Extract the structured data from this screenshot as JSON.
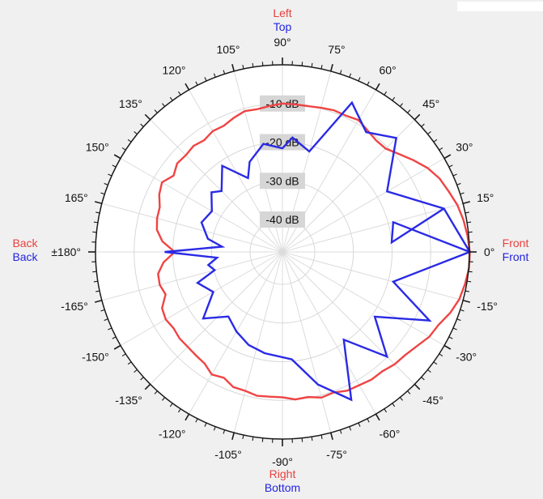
{
  "chart_data": {
    "type": "polar-line",
    "radial_axis": {
      "unit": "dB",
      "tick_labels": [
        "-10 dB",
        "-20 dB",
        "-30 dB",
        "-40 dB"
      ],
      "tick_values": [
        -10,
        -20,
        -30,
        -40
      ],
      "range": [
        -40,
        0
      ]
    },
    "angle_ticks": [
      {
        "angle": 90,
        "label": "90°"
      },
      {
        "angle": 75,
        "label": "75°"
      },
      {
        "angle": 60,
        "label": "60°"
      },
      {
        "angle": 45,
        "label": "45°"
      },
      {
        "angle": 30,
        "label": "30°"
      },
      {
        "angle": 15,
        "label": "15°"
      },
      {
        "angle": 0,
        "label": "0°"
      },
      {
        "angle": -15,
        "label": "-15°"
      },
      {
        "angle": -30,
        "label": "-30°"
      },
      {
        "angle": -45,
        "label": "-45°"
      },
      {
        "angle": -60,
        "label": "-60°"
      },
      {
        "angle": -75,
        "label": "-75°"
      },
      {
        "angle": -90,
        "label": "-90°"
      },
      {
        "angle": -105,
        "label": "-105°"
      },
      {
        "angle": -120,
        "label": "-120°"
      },
      {
        "angle": -135,
        "label": "-135°"
      },
      {
        "angle": -150,
        "label": "-150°"
      },
      {
        "angle": -165,
        "label": "-165°"
      },
      {
        "angle": 180,
        "label": "±180°"
      },
      {
        "angle": 165,
        "label": "165°"
      },
      {
        "angle": 150,
        "label": "150°"
      },
      {
        "angle": 135,
        "label": "135°"
      },
      {
        "angle": 120,
        "label": "120°"
      },
      {
        "angle": 105,
        "label": "105°"
      }
    ],
    "direction_labels": {
      "top": [
        {
          "text": "Left",
          "color": "#e8413f"
        },
        {
          "text": "Top",
          "color": "#2323e0"
        }
      ],
      "bottom": [
        {
          "text": "Right",
          "color": "#e8413f"
        },
        {
          "text": "Bottom",
          "color": "#2323e0"
        }
      ],
      "right": [
        {
          "text": "Front",
          "color": "#e8413f"
        },
        {
          "text": "Front",
          "color": "#2323e0"
        }
      ],
      "left": [
        {
          "text": "Back",
          "color": "#e8413f"
        },
        {
          "text": "Back",
          "color": "#2323e0"
        }
      ]
    },
    "series": [
      {
        "color": "#ef4444",
        "points": [
          {
            "angle": 0,
            "value": 0.1
          },
          {
            "angle": 5,
            "value": -0.3
          },
          {
            "angle": 10,
            "value": -0.8
          },
          {
            "angle": 15,
            "value": -1.5
          },
          {
            "angle": 20,
            "value": -2.6
          },
          {
            "angle": 25,
            "value": -3.5
          },
          {
            "angle": 30,
            "value": -5.0
          },
          {
            "angle": 35,
            "value": -7.0
          },
          {
            "angle": 40,
            "value": -9.0
          },
          {
            "angle": 45,
            "value": -10.6
          },
          {
            "angle": 50,
            "value": -10.7
          },
          {
            "angle": 55,
            "value": -10.0
          },
          {
            "angle": 60,
            "value": -9.0
          },
          {
            "angle": 65,
            "value": -9.5
          },
          {
            "angle": 70,
            "value": -9.4
          },
          {
            "angle": 75,
            "value": -9.8
          },
          {
            "angle": 80,
            "value": -10.1
          },
          {
            "angle": 85,
            "value": -10.1
          },
          {
            "angle": 90,
            "value": -10.0
          },
          {
            "angle": 95,
            "value": -10.5
          },
          {
            "angle": 100,
            "value": -10.9
          },
          {
            "angle": 105,
            "value": -10.7
          },
          {
            "angle": 110,
            "value": -11.5
          },
          {
            "angle": 115,
            "value": -12.4
          },
          {
            "angle": 120,
            "value": -12.3
          },
          {
            "angle": 125,
            "value": -13.1
          },
          {
            "angle": 130,
            "value": -12.6
          },
          {
            "angle": 135,
            "value": -13.0
          },
          {
            "angle": 140,
            "value": -12.8
          },
          {
            "angle": 145,
            "value": -14.0
          },
          {
            "angle": 150,
            "value": -12.4
          },
          {
            "angle": 155,
            "value": -13.2
          },
          {
            "angle": 160,
            "value": -14.6
          },
          {
            "angle": 165,
            "value": -14.8
          },
          {
            "angle": 170,
            "value": -15.4
          },
          {
            "angle": 175,
            "value": -17.2
          },
          {
            "angle": 180,
            "value": -20.5
          },
          {
            "angle": -175,
            "value": -17.5
          },
          {
            "angle": -170,
            "value": -15.7
          },
          {
            "angle": -165,
            "value": -15.5
          },
          {
            "angle": -160,
            "value": -16.2
          },
          {
            "angle": -155,
            "value": -14.0
          },
          {
            "angle": -150,
            "value": -13.5
          },
          {
            "angle": -145,
            "value": -14.0
          },
          {
            "angle": -140,
            "value": -13.6
          },
          {
            "angle": -135,
            "value": -13.7
          },
          {
            "angle": -130,
            "value": -13.5
          },
          {
            "angle": -125,
            "value": -13.2
          },
          {
            "angle": -120,
            "value": -11.8
          },
          {
            "angle": -115,
            "value": -12.5
          },
          {
            "angle": -110,
            "value": -11.2
          },
          {
            "angle": -105,
            "value": -11.2
          },
          {
            "angle": -100,
            "value": -10.6
          },
          {
            "angle": -95,
            "value": -10.8
          },
          {
            "angle": -90,
            "value": -10.8
          },
          {
            "angle": -85,
            "value": -10.1
          },
          {
            "angle": -80,
            "value": -10.3
          },
          {
            "angle": -75,
            "value": -9.4
          },
          {
            "angle": -70,
            "value": -9.7
          },
          {
            "angle": -65,
            "value": -8.8
          },
          {
            "angle": -60,
            "value": -8.6
          },
          {
            "angle": -55,
            "value": -8.1
          },
          {
            "angle": -50,
            "value": -8.1
          },
          {
            "angle": -45,
            "value": -7.3
          },
          {
            "angle": -40,
            "value": -6.9
          },
          {
            "angle": -35,
            "value": -5.9
          },
          {
            "angle": -30,
            "value": -4.5
          },
          {
            "angle": -25,
            "value": -3.8
          },
          {
            "angle": -20,
            "value": -2.2
          },
          {
            "angle": -15,
            "value": -1.0
          },
          {
            "angle": -10,
            "value": -0.4
          },
          {
            "angle": -5,
            "value": 0.1
          }
        ]
      },
      {
        "color": "#2a2ae6",
        "points": [
          {
            "angle": 0,
            "value": 0.1
          },
          {
            "angle": 15,
            "value": -5.1
          },
          {
            "angle": 30,
            "value": -17.1
          },
          {
            "angle": 45,
            "value": -6.7
          },
          {
            "angle": 55,
            "value": -10.6
          },
          {
            "angle": 65,
            "value": -5.8
          },
          {
            "angle": 75,
            "value": -21.5
          },
          {
            "angle": 85,
            "value": -18.7
          },
          {
            "angle": 90,
            "value": -21.6
          },
          {
            "angle": 100,
            "value": -20.0
          },
          {
            "angle": 110,
            "value": -23.6
          },
          {
            "angle": 115,
            "value": -27.3
          },
          {
            "angle": 125,
            "value": -21.2
          },
          {
            "angle": 135,
            "value": -26.1
          },
          {
            "angle": 140,
            "value": -24.4
          },
          {
            "angle": 150,
            "value": -27.3
          },
          {
            "angle": 160,
            "value": -26.1
          },
          {
            "angle": 170,
            "value": -28.8
          },
          {
            "angle": 175,
            "value": -32.7
          },
          {
            "angle": 180,
            "value": -17.9
          },
          {
            "angle": -175,
            "value": -31.4
          },
          {
            "angle": -170,
            "value": -28.9
          },
          {
            "angle": -165,
            "value": -30.2
          },
          {
            "angle": -160,
            "value": -25.0
          },
          {
            "angle": -150,
            "value": -27.7
          },
          {
            "angle": -140,
            "value": -21.6
          },
          {
            "angle": -130,
            "value": -26.6
          },
          {
            "angle": -120,
            "value": -24.6
          },
          {
            "angle": -110,
            "value": -22.8
          },
          {
            "angle": -100,
            "value": -21.8
          },
          {
            "angle": -85,
            "value": -20.5
          },
          {
            "angle": -75,
            "value": -12.9
          },
          {
            "angle": -65,
            "value": -6.2
          },
          {
            "angle": -55,
            "value": -20.7
          },
          {
            "angle": -45,
            "value": -10.1
          },
          {
            "angle": -35,
            "value": -19.2
          },
          {
            "angle": -25,
            "value": -6.4
          },
          {
            "angle": -15,
            "value": -18.7
          },
          {
            "angle": 0,
            "value": 0.1
          },
          {
            "angle": 15,
            "value": -18.7
          },
          {
            "angle": 5,
            "value": -20.0
          },
          {
            "angle": 15,
            "value": -5.1
          }
        ]
      }
    ]
  }
}
